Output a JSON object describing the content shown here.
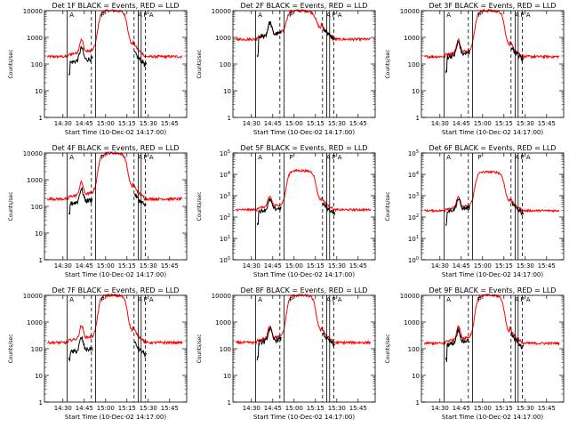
{
  "figure": {
    "background": "#ffffff",
    "event_color": "#000000",
    "lld_color": "#ff0000",
    "ylabel": "Counts/sec",
    "xlabel": "Start Time (10-Dec-02 14:17:00)",
    "marker_labels": [
      "A",
      "P",
      "A",
      "P",
      "A"
    ],
    "time_labels": [
      "14:30",
      "14:45",
      "15:00",
      "15:15",
      "15:30",
      "15:45"
    ]
  },
  "chart_data": [
    {
      "type": "line",
      "title": "Det 1F BLACK = Events, RED = LLD",
      "xlabel": "Start Time (10-Dec-02 14:17:00)",
      "ylabel": "Counts/sec",
      "yscale": "log",
      "ylim": [
        1,
        10000
      ],
      "ytick_style": "plain",
      "yticks": [
        1,
        10,
        100,
        1000,
        10000
      ],
      "ytick_labels": [
        "1",
        "10",
        "100",
        "1000",
        "10000"
      ],
      "xlim": [
        "14:17",
        "15:57"
      ],
      "xticks": [
        "14:30",
        "14:45",
        "15:00",
        "15:15",
        "15:30",
        "15:45"
      ],
      "solid_markers": [
        "14:33",
        "14:53",
        "15:23",
        "15:25"
      ],
      "dashed_markers": [
        "14:50",
        "15:20",
        "15:28"
      ],
      "event_ratio": 0.5,
      "event_start": "14:34",
      "lld_base": 190,
      "lld_peak": 10000,
      "lld_end_level": 190,
      "series": [
        {
          "name": "Events",
          "color": "#000000"
        },
        {
          "name": "LLD",
          "color": "#ff0000"
        }
      ]
    },
    {
      "type": "line",
      "title": "Det 2F BLACK = Events, RED = LLD",
      "xlabel": "Start Time (10-Dec-02 14:17:00)",
      "ylabel": "Counts/sec",
      "yscale": "log",
      "ylim": [
        1,
        10000
      ],
      "ytick_style": "plain",
      "yticks": [
        1,
        10,
        100,
        1000,
        10000
      ],
      "ytick_labels": [
        "1",
        "10",
        "100",
        "1000",
        "10000"
      ],
      "xlim": [
        "14:17",
        "15:57"
      ],
      "xticks": [
        "14:30",
        "14:45",
        "15:00",
        "15:15",
        "15:30",
        "15:45"
      ],
      "solid_markers": [
        "14:33",
        "14:53",
        "15:23",
        "15:25"
      ],
      "dashed_markers": [
        "14:50",
        "15:20",
        "15:28"
      ],
      "event_ratio": 1.0,
      "event_start": "14:34",
      "lld_base": 850,
      "lld_peak": 10000,
      "lld_end_level": 850,
      "series": [
        {
          "name": "Events",
          "color": "#000000"
        },
        {
          "name": "LLD",
          "color": "#ff0000"
        }
      ]
    },
    {
      "type": "line",
      "title": "Det 3F BLACK = Events, RED = LLD",
      "xlabel": "Start Time (10-Dec-02 14:17:00)",
      "ylabel": "Counts/sec",
      "yscale": "log",
      "ylim": [
        1,
        10000
      ],
      "ytick_style": "plain",
      "yticks": [
        1,
        10,
        100,
        1000,
        10000
      ],
      "ytick_labels": [
        "1",
        "10",
        "100",
        "1000",
        "10000"
      ],
      "xlim": [
        "14:17",
        "15:57"
      ],
      "xticks": [
        "14:30",
        "14:45",
        "15:00",
        "15:15",
        "15:30",
        "15:45"
      ],
      "solid_markers": [
        "14:33",
        "14:53",
        "15:23",
        "15:25"
      ],
      "dashed_markers": [
        "14:50",
        "15:20",
        "15:28"
      ],
      "event_ratio": 0.8,
      "event_start": "14:34",
      "lld_base": 190,
      "lld_peak": 10000,
      "lld_end_level": 190,
      "series": [
        {
          "name": "Events",
          "color": "#000000"
        },
        {
          "name": "LLD",
          "color": "#ff0000"
        }
      ]
    },
    {
      "type": "line",
      "title": "Det 4F BLACK = Events, RED = LLD",
      "xlabel": "Start Time (10-Dec-02 14:17:00)",
      "ylabel": "Counts/sec",
      "yscale": "log",
      "ylim": [
        1,
        10000
      ],
      "ytick_style": "plain",
      "yticks": [
        1,
        10,
        100,
        1000,
        10000
      ],
      "ytick_labels": [
        "1",
        "10",
        "100",
        "1000",
        "10000"
      ],
      "xlim": [
        "14:17",
        "15:57"
      ],
      "xticks": [
        "14:30",
        "14:45",
        "15:00",
        "15:15",
        "15:30",
        "15:45"
      ],
      "solid_markers": [
        "14:33",
        "14:53",
        "15:23",
        "15:25"
      ],
      "dashed_markers": [
        "14:50",
        "15:20",
        "15:28"
      ],
      "event_ratio": 0.55,
      "event_start": "14:34",
      "lld_base": 190,
      "lld_peak": 10000,
      "lld_end_level": 190,
      "series": [
        {
          "name": "Events",
          "color": "#000000"
        },
        {
          "name": "LLD",
          "color": "#ff0000"
        }
      ]
    },
    {
      "type": "line",
      "title": "Det 5F BLACK = Events, RED = LLD",
      "xlabel": "Start Time (10-Dec-02 14:17:00)",
      "ylabel": "Counts/sec",
      "yscale": "log",
      "ylim": [
        1,
        100000
      ],
      "ytick_style": "power",
      "yticks": [
        1,
        10,
        100,
        1000,
        10000,
        100000
      ],
      "ytick_labels": [
        "10^0",
        "10^1",
        "10^2",
        "10^3",
        "10^4",
        "10^5"
      ],
      "xlim": [
        "14:17",
        "15:57"
      ],
      "xticks": [
        "14:30",
        "14:45",
        "15:00",
        "15:15",
        "15:30",
        "15:45"
      ],
      "solid_markers": [
        "14:33",
        "14:53",
        "15:23",
        "15:25"
      ],
      "dashed_markers": [
        "14:50",
        "15:20",
        "15:28"
      ],
      "event_ratio": 0.7,
      "event_start": "14:34",
      "lld_base": 220,
      "lld_peak": 15000,
      "lld_end_level": 220,
      "series": [
        {
          "name": "Events",
          "color": "#000000"
        },
        {
          "name": "LLD",
          "color": "#ff0000"
        }
      ]
    },
    {
      "type": "line",
      "title": "Det 6F BLACK = Events, RED = LLD",
      "xlabel": "Start Time (10-Dec-02 14:17:00)",
      "ylabel": "Counts/sec",
      "yscale": "log",
      "ylim": [
        1,
        100000
      ],
      "ytick_style": "power",
      "yticks": [
        1,
        10,
        100,
        1000,
        10000,
        100000
      ],
      "ytick_labels": [
        "10^0",
        "10^1",
        "10^2",
        "10^3",
        "10^4",
        "10^5"
      ],
      "xlim": [
        "14:17",
        "15:57"
      ],
      "xticks": [
        "14:30",
        "14:45",
        "15:00",
        "15:15",
        "15:30",
        "15:45"
      ],
      "solid_markers": [
        "14:33",
        "14:53",
        "15:23",
        "15:25"
      ],
      "dashed_markers": [
        "14:50",
        "15:20",
        "15:28"
      ],
      "event_ratio": 0.8,
      "event_start": "14:34",
      "lld_base": 200,
      "lld_peak": 13000,
      "lld_end_level": 200,
      "series": [
        {
          "name": "Events",
          "color": "#000000"
        },
        {
          "name": "LLD",
          "color": "#ff0000"
        }
      ]
    },
    {
      "type": "line",
      "title": "Det 7F BLACK = Events, RED = LLD",
      "xlabel": "Start Time (10-Dec-02 14:17:00)",
      "ylabel": "Counts/sec",
      "yscale": "log",
      "ylim": [
        1,
        10000
      ],
      "ytick_style": "plain",
      "yticks": [
        1,
        10,
        100,
        1000,
        10000
      ],
      "ytick_labels": [
        "1",
        "10",
        "100",
        "1000",
        "10000"
      ],
      "xlim": [
        "14:17",
        "15:57"
      ],
      "xticks": [
        "14:30",
        "14:45",
        "15:00",
        "15:15",
        "15:30",
        "15:45"
      ],
      "solid_markers": [
        "14:33",
        "14:53",
        "15:23",
        "15:25"
      ],
      "dashed_markers": [
        "14:50",
        "15:20",
        "15:28"
      ],
      "event_ratio": 0.35,
      "event_start": "14:34",
      "lld_base": 170,
      "lld_peak": 10000,
      "lld_end_level": 170,
      "series": [
        {
          "name": "Events",
          "color": "#000000"
        },
        {
          "name": "LLD",
          "color": "#ff0000"
        }
      ]
    },
    {
      "type": "line",
      "title": "Det 8F BLACK = Events, RED = LLD",
      "xlabel": "Start Time (10-Dec-02 14:17:00)",
      "ylabel": "Counts/sec",
      "yscale": "log",
      "ylim": [
        1,
        10000
      ],
      "ytick_style": "plain",
      "yticks": [
        1,
        10,
        100,
        1000,
        10000
      ],
      "ytick_labels": [
        "1",
        "10",
        "100",
        "1000",
        "10000"
      ],
      "xlim": [
        "14:17",
        "15:57"
      ],
      "xticks": [
        "14:30",
        "14:45",
        "15:00",
        "15:15",
        "15:30",
        "15:45"
      ],
      "solid_markers": [
        "14:33",
        "14:53",
        "15:23",
        "15:25"
      ],
      "dashed_markers": [
        "14:50",
        "15:20",
        "15:28"
      ],
      "event_ratio": 0.8,
      "event_start": "14:34",
      "lld_base": 170,
      "lld_peak": 10000,
      "lld_end_level": 170,
      "series": [
        {
          "name": "Events",
          "color": "#000000"
        },
        {
          "name": "LLD",
          "color": "#ff0000"
        }
      ]
    },
    {
      "type": "line",
      "title": "Det 9F BLACK = Events, RED = LLD",
      "xlabel": "Start Time (10-Dec-02 14:17:00)",
      "ylabel": "Counts/sec",
      "yscale": "log",
      "ylim": [
        1,
        10000
      ],
      "ytick_style": "plain",
      "yticks": [
        1,
        10,
        100,
        1000,
        10000
      ],
      "ytick_labels": [
        "1",
        "10",
        "100",
        "1000",
        "10000"
      ],
      "xlim": [
        "14:17",
        "15:57"
      ],
      "xticks": [
        "14:30",
        "14:45",
        "15:00",
        "15:15",
        "15:30",
        "15:45"
      ],
      "solid_markers": [
        "14:33",
        "14:53",
        "15:23",
        "15:25"
      ],
      "dashed_markers": [
        "14:50",
        "15:20",
        "15:28"
      ],
      "event_ratio": 0.75,
      "event_start": "14:34",
      "lld_base": 160,
      "lld_peak": 10000,
      "lld_end_level": 160,
      "series": [
        {
          "name": "Events",
          "color": "#000000"
        },
        {
          "name": "LLD",
          "color": "#ff0000"
        }
      ]
    }
  ]
}
